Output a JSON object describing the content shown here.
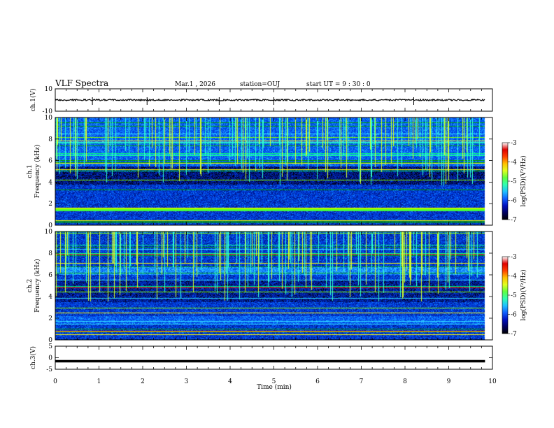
{
  "header": {
    "title": "VLF Spectra",
    "date": "Mar.1 , 2026",
    "station": "station=OUJ",
    "start": "start UT = 9 : 30 : 0"
  },
  "colors": {
    "colormap": [
      "#000000",
      "#000060",
      "#0010c0",
      "#1060ff",
      "#20c0ff",
      "#30ffb0",
      "#60ff40",
      "#e0ff20",
      "#ffc000",
      "#ff4000",
      "#e00000",
      "#ffffff"
    ]
  },
  "chart_data": [
    {
      "id": "ch1-waveform",
      "type": "line",
      "ylabel": "ch.1(V)",
      "ylim": [
        -10,
        10
      ],
      "y_tick_labels": [
        "10",
        "-10"
      ],
      "xlim": [
        0,
        10
      ],
      "baseline": 0,
      "spike_times_min": [
        0.85,
        2.1,
        3.75,
        5.0,
        8.2
      ]
    },
    {
      "id": "ch1-spectrogram",
      "type": "heatmap",
      "ylabel_line1": "ch.1",
      "ylabel_line2": "Frequency (kHz)",
      "ylim": [
        0,
        10
      ],
      "y_tick_labels": [
        "0",
        "2",
        "4",
        "6",
        "8",
        "10"
      ],
      "xlim": [
        0,
        10
      ],
      "data_end_min": 9.83,
      "colorbar": {
        "label": "log(PSD)(V²/Hz)",
        "range": [
          -7,
          -3
        ],
        "tick_labels": [
          "-3",
          "-4",
          "-5",
          "-6",
          "-7"
        ]
      }
    },
    {
      "id": "ch2-spectrogram",
      "type": "heatmap",
      "ylabel_line1": "ch.2",
      "ylabel_line2": "Frequency (kHz)",
      "ylim": [
        0,
        10
      ],
      "y_tick_labels": [
        "0",
        "2",
        "4",
        "6",
        "8",
        "10"
      ],
      "xlim": [
        0,
        10
      ],
      "data_end_min": 9.83,
      "colorbar": {
        "label": "log(PSD)(V²/Hz)",
        "range": [
          -7,
          -3
        ],
        "tick_labels": [
          "-3",
          "-4",
          "-5",
          "-6",
          "-7"
        ]
      }
    },
    {
      "id": "ch3-waveform",
      "type": "line",
      "ylabel": "ch.3(V)",
      "ylim": [
        -5,
        5
      ],
      "y_tick_labels": [
        "5",
        "0",
        "-5"
      ],
      "xlim": [
        0,
        10
      ],
      "baseline": -1.5
    }
  ],
  "xaxis": {
    "label": "Time (min)",
    "tick_labels": [
      "0",
      "1",
      "2",
      "3",
      "4",
      "5",
      "6",
      "7",
      "8",
      "9",
      "10"
    ]
  }
}
